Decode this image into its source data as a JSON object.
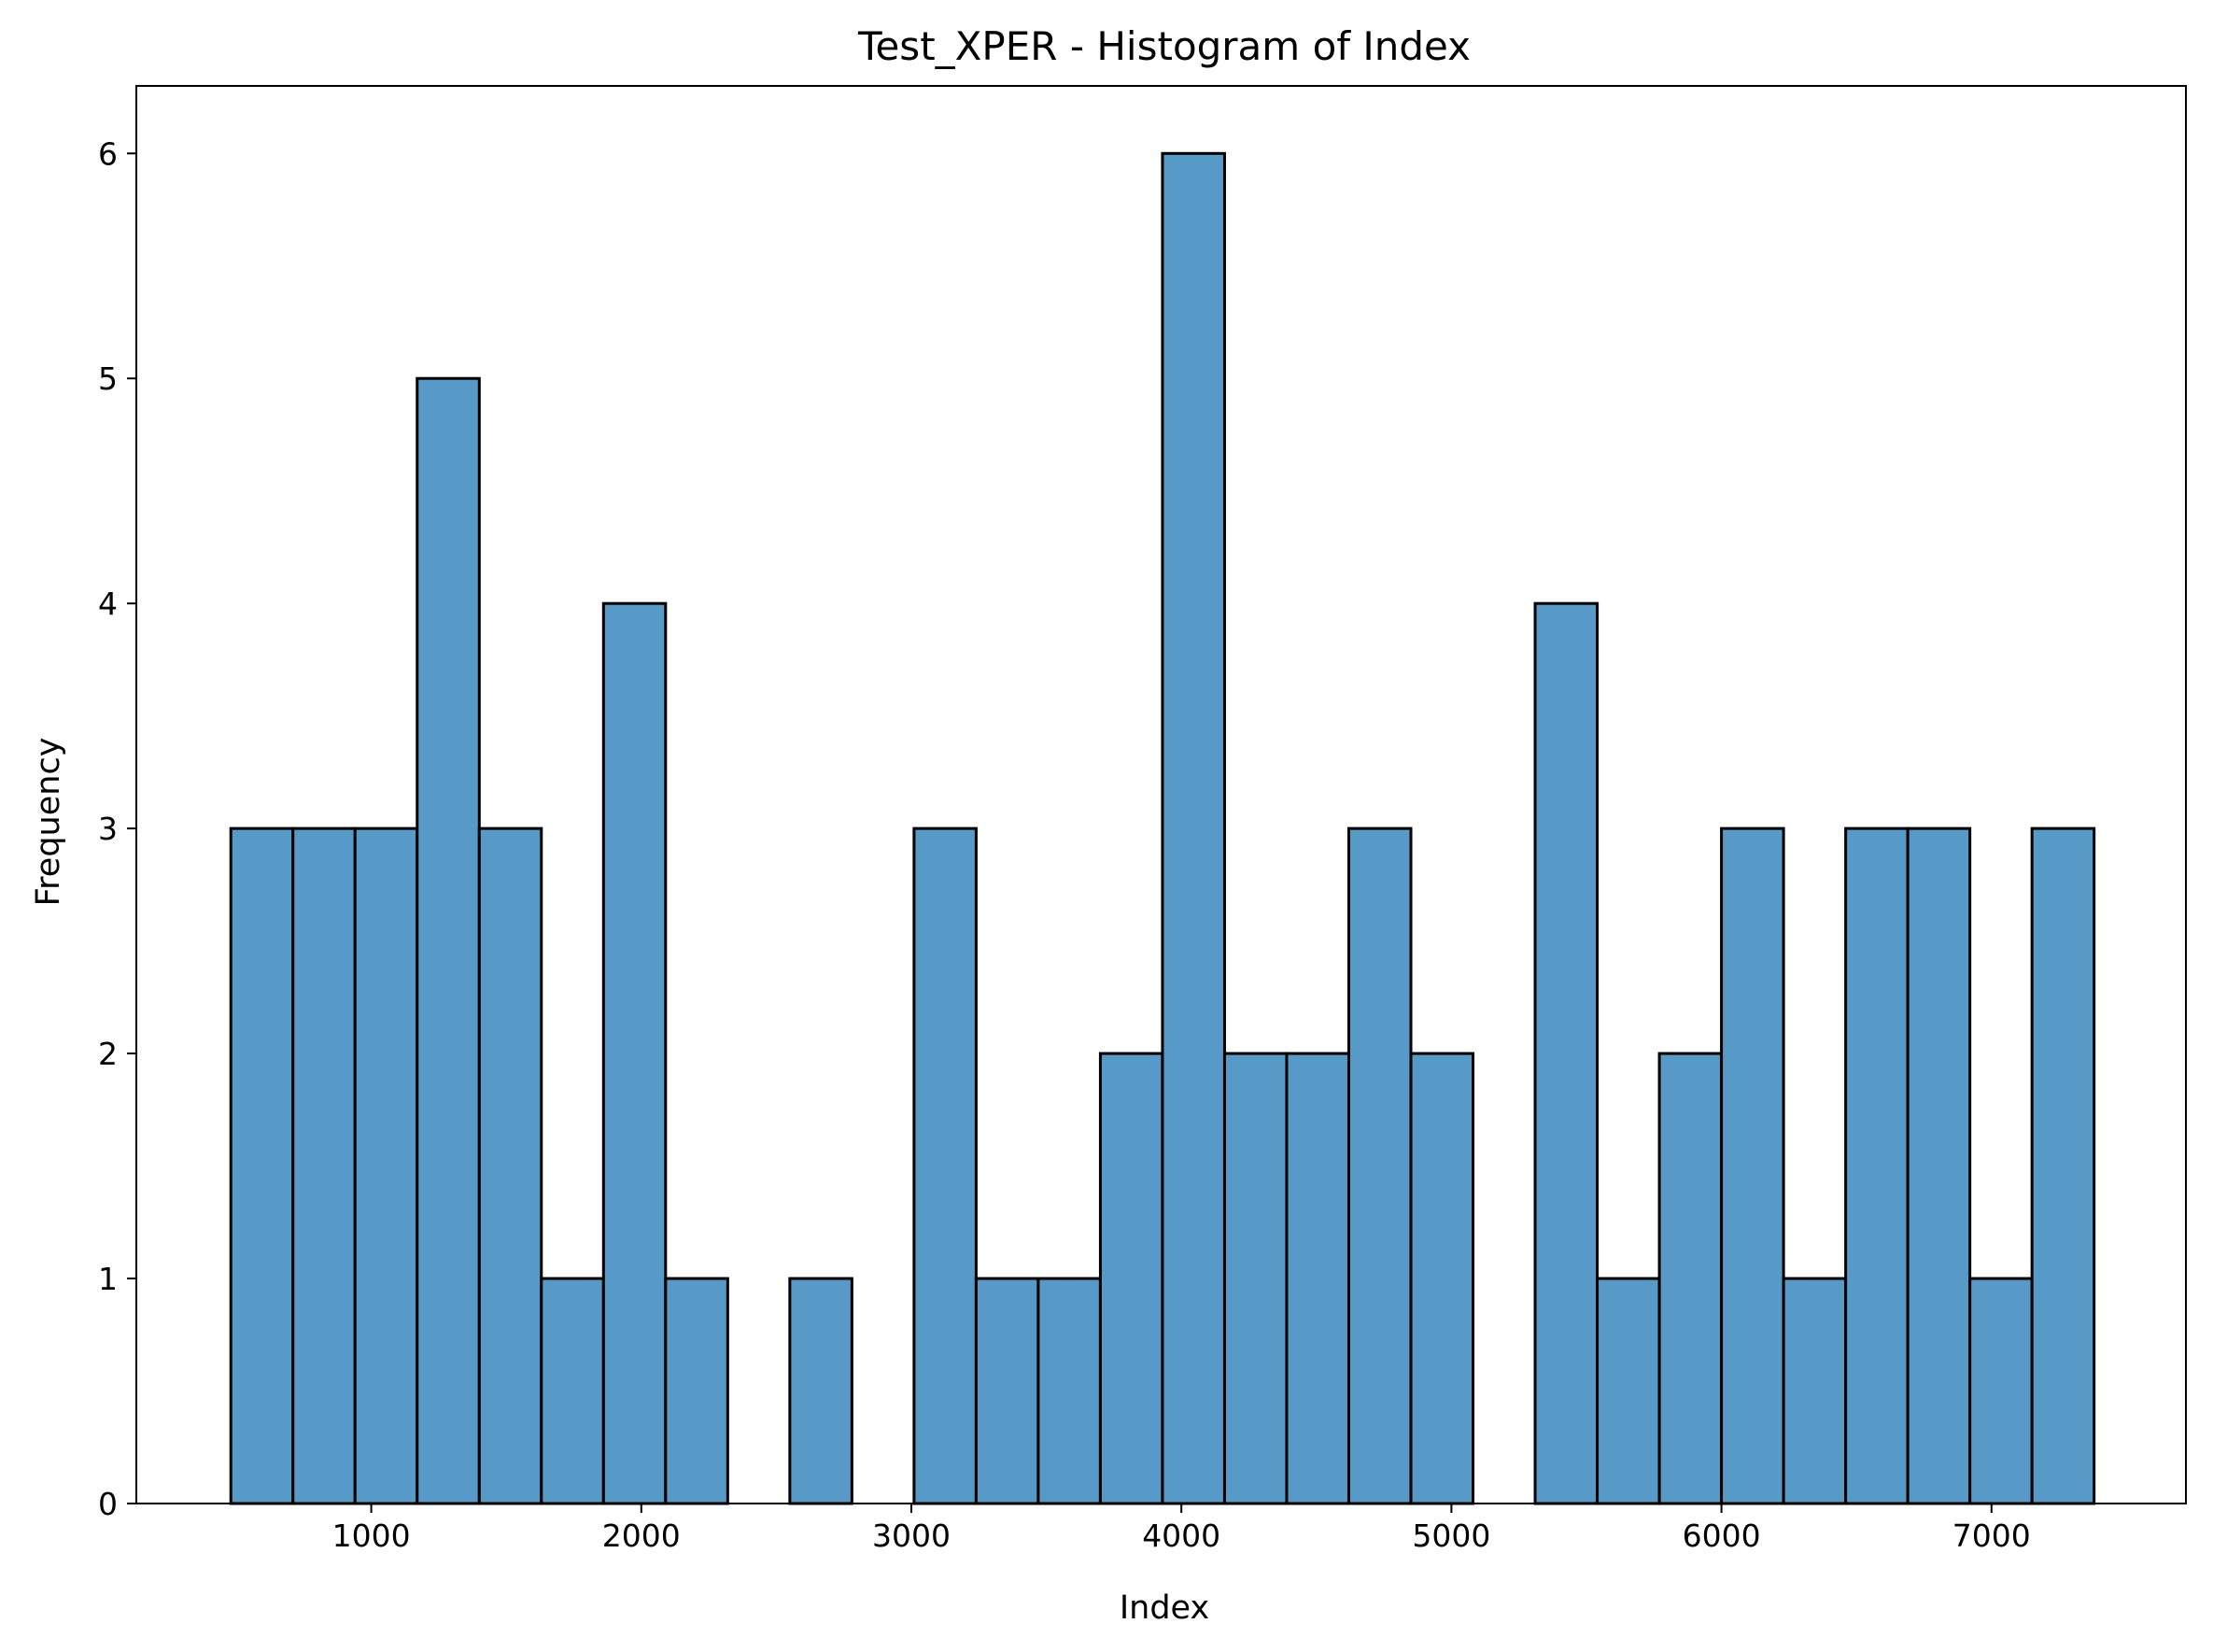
{
  "chart_data": {
    "type": "bar",
    "subtype": "histogram",
    "title": "Test_XPER - Histogram of Index",
    "xlabel": "Index",
    "ylabel": "Frequency",
    "xlim": [
      130,
      7720
    ],
    "ylim": [
      0,
      6.3
    ],
    "xticks": [
      1000,
      2000,
      3000,
      4000,
      5000,
      6000,
      7000
    ],
    "yticks": [
      0,
      1,
      2,
      3,
      4,
      5,
      6
    ],
    "bin_start": 480,
    "bin_width": 230,
    "values": [
      3,
      3,
      3,
      5,
      3,
      1,
      4,
      1,
      0,
      1,
      0,
      3,
      1,
      1,
      2,
      6,
      2,
      2,
      3,
      2,
      0,
      4,
      1,
      2,
      3,
      1,
      3,
      3,
      1,
      3
    ],
    "bar_color": "#5799c7",
    "edge_color": "#000000",
    "grid": false
  }
}
